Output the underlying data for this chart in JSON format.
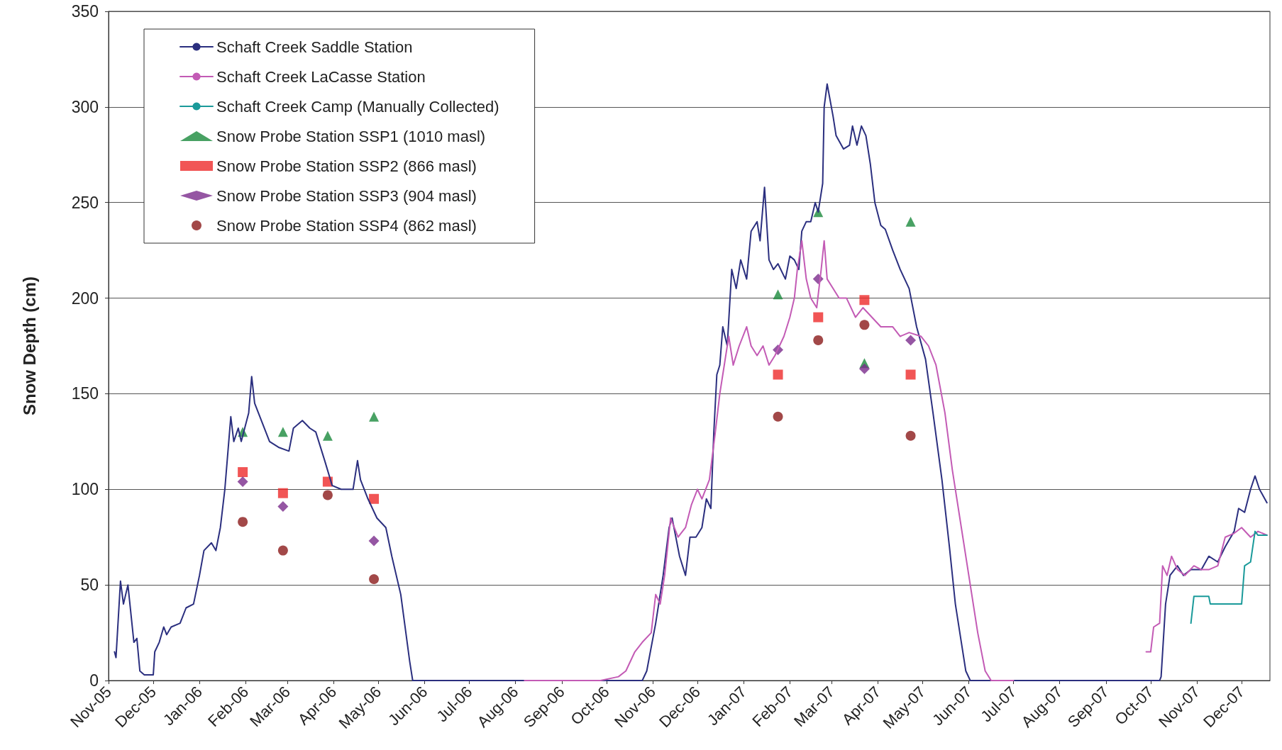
{
  "chart_data": {
    "type": "line",
    "ylabel": "Snow Depth (cm)",
    "ylim": [
      0,
      350
    ],
    "yticks": [
      0,
      50,
      100,
      150,
      200,
      250,
      300,
      350
    ],
    "xlim": [
      "2005-11-01",
      "2007-12-20"
    ],
    "xticks": [
      {
        "value": "2005-11-01",
        "label": "Nov-05"
      },
      {
        "value": "2005-12-01",
        "label": "Dec-05"
      },
      {
        "value": "2006-01-01",
        "label": "Jan-06"
      },
      {
        "value": "2006-02-01",
        "label": "Feb-06"
      },
      {
        "value": "2006-03-01",
        "label": "Mar-06"
      },
      {
        "value": "2006-04-01",
        "label": "Apr-06"
      },
      {
        "value": "2006-05-01",
        "label": "May-06"
      },
      {
        "value": "2006-06-01",
        "label": "Jun-06"
      },
      {
        "value": "2006-07-01",
        "label": "Jul-06"
      },
      {
        "value": "2006-08-01",
        "label": "Aug-06"
      },
      {
        "value": "2006-09-01",
        "label": "Sep-06"
      },
      {
        "value": "2006-10-01",
        "label": "Oct-06"
      },
      {
        "value": "2006-11-01",
        "label": "Nov-06"
      },
      {
        "value": "2006-12-01",
        "label": "Dec-06"
      },
      {
        "value": "2007-01-01",
        "label": "Jan-07"
      },
      {
        "value": "2007-02-01",
        "label": "Feb-07"
      },
      {
        "value": "2007-03-01",
        "label": "Mar-07"
      },
      {
        "value": "2007-04-01",
        "label": "Apr-07"
      },
      {
        "value": "2007-05-01",
        "label": "May-07"
      },
      {
        "value": "2007-06-01",
        "label": "Jun-07"
      },
      {
        "value": "2007-07-01",
        "label": "Jul-07"
      },
      {
        "value": "2007-08-01",
        "label": "Aug-07"
      },
      {
        "value": "2007-09-01",
        "label": "Sep-07"
      },
      {
        "value": "2007-10-01",
        "label": "Oct-07"
      },
      {
        "value": "2007-11-01",
        "label": "Nov-07"
      },
      {
        "value": "2007-12-01",
        "label": "Dec-07"
      }
    ],
    "grid": "y",
    "legend": "top left",
    "series": [
      {
        "name": "Schaft Creek Saddle Station",
        "marker": "none",
        "color": "#2b2f7f",
        "x": [
          "2005-11-05",
          "2005-11-06",
          "2005-11-09",
          "2005-11-11",
          "2005-11-14",
          "2005-11-16",
          "2005-11-18",
          "2005-11-20",
          "2005-11-22",
          "2005-11-25",
          "2005-12-01",
          "2005-12-02",
          "2005-12-05",
          "2005-12-08",
          "2005-12-10",
          "2005-12-13",
          "2005-12-19",
          "2005-12-23",
          "2005-12-28",
          "2006-01-01",
          "2006-01-04",
          "2006-01-09",
          "2006-01-12",
          "2006-01-15",
          "2006-01-18",
          "2006-01-22",
          "2006-01-24",
          "2006-01-27",
          "2006-01-29",
          "2006-02-03",
          "2006-02-05",
          "2006-02-07",
          "2006-02-12",
          "2006-02-17",
          "2006-02-23",
          "2006-03-02",
          "2006-03-05",
          "2006-03-11",
          "2006-03-16",
          "2006-03-20",
          "2006-03-26",
          "2006-03-31",
          "2006-04-06",
          "2006-04-11",
          "2006-04-14",
          "2006-04-17",
          "2006-04-19",
          "2006-04-24",
          "2006-04-30",
          "2006-05-06",
          "2006-05-10",
          "2006-05-16",
          "2006-05-22",
          "2006-05-24",
          "2006-10-25",
          "2006-10-28",
          "2006-11-03",
          "2006-11-08",
          "2006-11-12",
          "2006-11-14",
          "2006-11-19",
          "2006-11-23",
          "2006-11-26",
          "2006-11-30",
          "2006-12-04",
          "2006-12-07",
          "2006-12-10",
          "2006-12-12",
          "2006-12-14",
          "2006-12-16",
          "2006-12-18",
          "2006-12-21",
          "2006-12-24",
          "2006-12-27",
          "2006-12-30",
          "2007-01-03",
          "2007-01-06",
          "2007-01-10",
          "2007-01-12",
          "2007-01-15",
          "2007-01-18",
          "2007-01-21",
          "2007-01-24",
          "2007-01-29",
          "2007-02-01",
          "2007-02-04",
          "2007-02-07",
          "2007-02-09",
          "2007-02-12",
          "2007-02-15",
          "2007-02-18",
          "2007-02-20",
          "2007-02-23",
          "2007-02-24",
          "2007-02-26",
          "2007-03-02",
          "2007-03-04",
          "2007-03-09",
          "2007-03-13",
          "2007-03-15",
          "2007-03-18",
          "2007-03-21",
          "2007-03-24",
          "2007-03-27",
          "2007-03-30",
          "2007-04-03",
          "2007-04-06",
          "2007-04-11",
          "2007-04-16",
          "2007-04-22",
          "2007-04-27",
          "2007-05-03",
          "2007-05-08",
          "2007-05-14",
          "2007-05-19",
          "2007-05-23",
          "2007-05-27",
          "2007-05-30",
          "2007-06-02",
          "2007-10-07",
          "2007-10-08",
          "2007-10-11",
          "2007-10-14",
          "2007-10-19",
          "2007-10-23",
          "2007-10-28",
          "2007-11-04",
          "2007-11-09",
          "2007-11-15",
          "2007-11-20",
          "2007-11-26",
          "2007-11-29",
          "2007-12-03",
          "2007-12-07",
          "2007-12-10",
          "2007-12-13",
          "2007-12-18"
        ],
        "values": [
          15,
          12,
          52,
          40,
          50,
          35,
          20,
          22,
          5,
          3,
          3,
          15,
          20,
          28,
          24,
          28,
          30,
          38,
          40,
          55,
          68,
          72,
          68,
          80,
          100,
          138,
          125,
          132,
          125,
          140,
          159,
          145,
          135,
          125,
          122,
          120,
          132,
          136,
          132,
          130,
          115,
          102,
          100,
          100,
          100,
          115,
          105,
          95,
          85,
          80,
          65,
          45,
          10,
          0,
          0,
          5,
          30,
          55,
          80,
          85,
          65,
          55,
          75,
          75,
          80,
          95,
          90,
          130,
          160,
          165,
          185,
          175,
          215,
          205,
          220,
          210,
          235,
          240,
          230,
          258,
          220,
          215,
          218,
          210,
          222,
          220,
          215,
          235,
          240,
          240,
          250,
          245,
          260,
          300,
          312,
          295,
          285,
          278,
          280,
          290,
          280,
          290,
          285,
          270,
          250,
          238,
          236,
          225,
          215,
          205,
          185,
          168,
          140,
          105,
          70,
          40,
          20,
          5,
          0,
          0,
          2,
          40,
          55,
          60,
          55,
          58,
          58,
          65,
          62,
          70,
          78,
          90,
          88,
          100,
          107,
          100,
          93
        ]
      },
      {
        "name": "Schaft Creek LaCasse Station",
        "marker": "none",
        "color": "#c35bb5",
        "x": [
          "2006-08-07",
          "2006-09-27",
          "2006-10-09",
          "2006-10-14",
          "2006-10-20",
          "2006-10-25",
          "2006-10-31",
          "2006-11-03",
          "2006-11-06",
          "2006-11-09",
          "2006-11-13",
          "2006-11-18",
          "2006-11-23",
          "2006-11-27",
          "2006-12-01",
          "2006-12-04",
          "2006-12-09",
          "2006-12-13",
          "2006-12-16",
          "2006-12-19",
          "2006-12-22",
          "2006-12-25",
          "2006-12-29",
          "2007-01-03",
          "2007-01-06",
          "2007-01-10",
          "2007-01-14",
          "2007-01-18",
          "2007-01-22",
          "2007-01-28",
          "2007-02-01",
          "2007-02-04",
          "2007-02-06",
          "2007-02-09",
          "2007-02-12",
          "2007-02-15",
          "2007-02-19",
          "2007-02-22",
          "2007-02-24",
          "2007-02-26",
          "2007-03-02",
          "2007-03-06",
          "2007-03-11",
          "2007-03-17",
          "2007-03-22",
          "2007-03-28",
          "2007-04-03",
          "2007-04-11",
          "2007-04-16",
          "2007-04-22",
          "2007-04-30",
          "2007-05-05",
          "2007-05-10",
          "2007-05-16",
          "2007-05-21",
          "2007-05-27",
          "2007-06-02",
          "2007-06-07",
          "2007-06-12",
          "2007-06-16",
          "2007-07-01",
          "2007-08-01",
          "2007-09-28",
          "2007-10-01",
          "2007-10-03",
          "2007-10-07",
          "2007-10-09",
          "2007-10-12",
          "2007-10-15",
          "2007-10-19",
          "2007-10-24",
          "2007-10-30",
          "2007-11-04",
          "2007-11-09",
          "2007-11-15",
          "2007-11-20",
          "2007-11-26",
          "2007-12-01",
          "2007-12-07",
          "2007-12-12",
          "2007-12-18"
        ],
        "values": [
          0,
          0,
          2,
          5,
          15,
          20,
          25,
          45,
          40,
          55,
          85,
          75,
          80,
          92,
          100,
          95,
          105,
          130,
          150,
          165,
          180,
          165,
          175,
          185,
          175,
          170,
          175,
          165,
          170,
          180,
          190,
          200,
          215,
          230,
          210,
          200,
          195,
          215,
          230,
          210,
          205,
          200,
          200,
          190,
          195,
          190,
          185,
          185,
          180,
          182,
          180,
          175,
          165,
          140,
          110,
          80,
          50,
          25,
          5,
          0,
          0,
          null,
          15,
          15,
          28,
          30,
          60,
          55,
          65,
          58,
          55,
          60,
          58,
          58,
          60,
          75,
          77,
          80,
          75,
          78,
          76
        ]
      },
      {
        "name": "Schaft Creek Camp (Manually Collected)",
        "marker": "none",
        "color": "#1a9a9a",
        "x": [
          "2007-10-28",
          "2007-10-30",
          "2007-11-09",
          "2007-11-10",
          "2007-12-01",
          "2007-12-03",
          "2007-12-07",
          "2007-12-10",
          "2007-12-12",
          "2007-12-18"
        ],
        "values": [
          30,
          44,
          44,
          40,
          40,
          60,
          62,
          78,
          76,
          76
        ]
      },
      {
        "name": "Snow Probe Station SSP1 (1010 masl)",
        "type": "scatter",
        "marker": "triangle",
        "color": "#1a8a3c",
        "x": [
          "2006-01-30",
          "2006-02-26",
          "2006-03-28",
          "2006-04-28",
          "2007-01-24",
          "2007-02-20",
          "2007-03-23",
          "2007-04-23"
        ],
        "values": [
          130,
          130,
          128,
          138,
          202,
          245,
          166,
          240
        ]
      },
      {
        "name": "Snow Probe Station SSP2 (866 masl)",
        "type": "scatter",
        "marker": "square",
        "color": "#ee2a2a",
        "x": [
          "2006-01-30",
          "2006-02-26",
          "2006-03-28",
          "2006-04-28",
          "2007-01-24",
          "2007-02-20",
          "2007-03-23",
          "2007-04-23"
        ],
        "values": [
          109,
          98,
          104,
          95,
          160,
          190,
          199,
          160
        ]
      },
      {
        "name": "Snow Probe Station SSP3 (904 masl)",
        "type": "scatter",
        "marker": "diamond",
        "color": "#7b2c8c",
        "x": [
          "2006-01-30",
          "2006-02-26",
          "2006-04-28",
          "2007-01-24",
          "2007-02-20",
          "2007-03-23",
          "2007-04-23"
        ],
        "values": [
          104,
          91,
          73,
          173,
          210,
          163,
          178
        ]
      },
      {
        "name": "Snow Probe Station SSP4 (862 masl)",
        "type": "scatter",
        "marker": "circle",
        "color": "#8b1a1a",
        "x": [
          "2006-01-30",
          "2006-02-26",
          "2006-03-28",
          "2006-04-28",
          "2007-01-24",
          "2007-02-20",
          "2007-03-23",
          "2007-04-23"
        ],
        "values": [
          83,
          68,
          97,
          53,
          138,
          178,
          186,
          128
        ]
      }
    ]
  }
}
